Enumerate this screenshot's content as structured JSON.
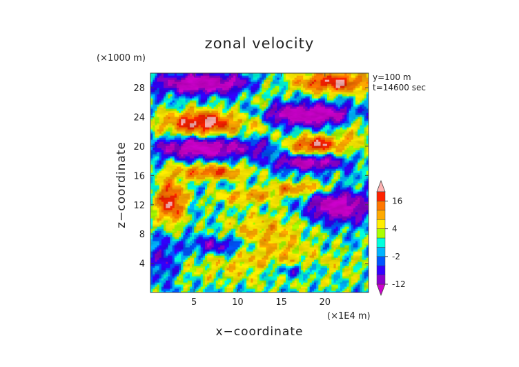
{
  "chart_data": {
    "type": "heatmap",
    "title": "zonal velocity",
    "xlabel": "x−coordinate",
    "ylabel": "z−coordinate",
    "x_unit": "(×1E4 m)",
    "y_unit": "(×1000 m)",
    "annotations": [
      "y=100 m",
      "t=14600 sec"
    ],
    "xlim": [
      0,
      25
    ],
    "ylim": [
      0,
      30
    ],
    "x_ticks": [
      5,
      10,
      15,
      20
    ],
    "y_ticks": [
      4,
      8,
      12,
      16,
      20,
      24,
      28
    ],
    "colorbar": {
      "levels": [
        -16,
        -12,
        -8,
        -4,
        -2,
        0,
        2,
        4,
        8,
        12,
        16,
        20
      ],
      "tick_labels": [
        16,
        4,
        -2,
        -12
      ],
      "colors": [
        "#cc00cc",
        "#8800cc",
        "#3300ff",
        "#0055ff",
        "#00b4ff",
        "#00ffdd",
        "#aaff00",
        "#ffee00",
        "#ffaa00",
        "#ff7700",
        "#ff2200",
        "#ffb2b2"
      ]
    }
  }
}
